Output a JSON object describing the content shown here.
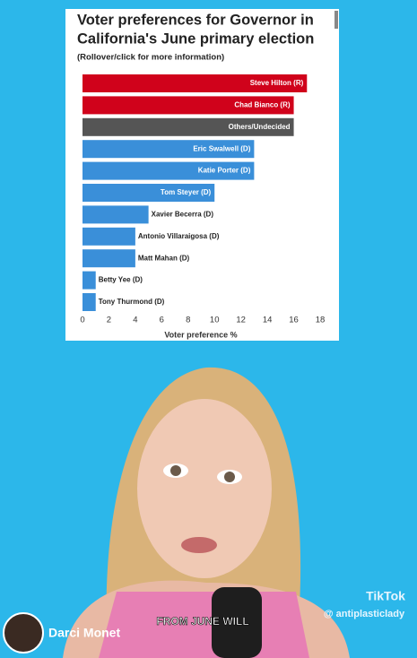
{
  "chart_data": {
    "type": "bar",
    "orientation": "horizontal",
    "title": [
      "Voter preferences for Governor in",
      "California's June primary election"
    ],
    "subtitle": "(Rollover/click for more information)",
    "categories": [
      "Steve Hilton (R)",
      "Chad Bianco (R)",
      "Others/Undecided",
      "Eric Swalwell (D)",
      "Katie Porter (D)",
      "Tom Steyer (D)",
      "Xavier Becerra (D)",
      "Antonio Villaraigosa (D)",
      "Matt Mahan (D)",
      "Betty Yee (D)",
      "Tony Thurmond (D)"
    ],
    "values": [
      17,
      16,
      16,
      13,
      13,
      10,
      5,
      4,
      4,
      1,
      1
    ],
    "colors": [
      "#d0021b",
      "#d0021b",
      "#555555",
      "#3a8fd9",
      "#3a8fd9",
      "#3a8fd9",
      "#3a8fd9",
      "#3a8fd9",
      "#3a8fd9",
      "#3a8fd9",
      "#3a8fd9"
    ],
    "xlim": [
      0,
      18
    ],
    "xticks": [
      0,
      2,
      4,
      6,
      8,
      10,
      12,
      14,
      16,
      18
    ],
    "xlabel": "Voter preference %"
  },
  "overlay": {
    "creator": "Darci Monet",
    "caption": "FROM JUNE WILL",
    "brand": "TikTok",
    "handle": "@ antiplasticlady"
  }
}
